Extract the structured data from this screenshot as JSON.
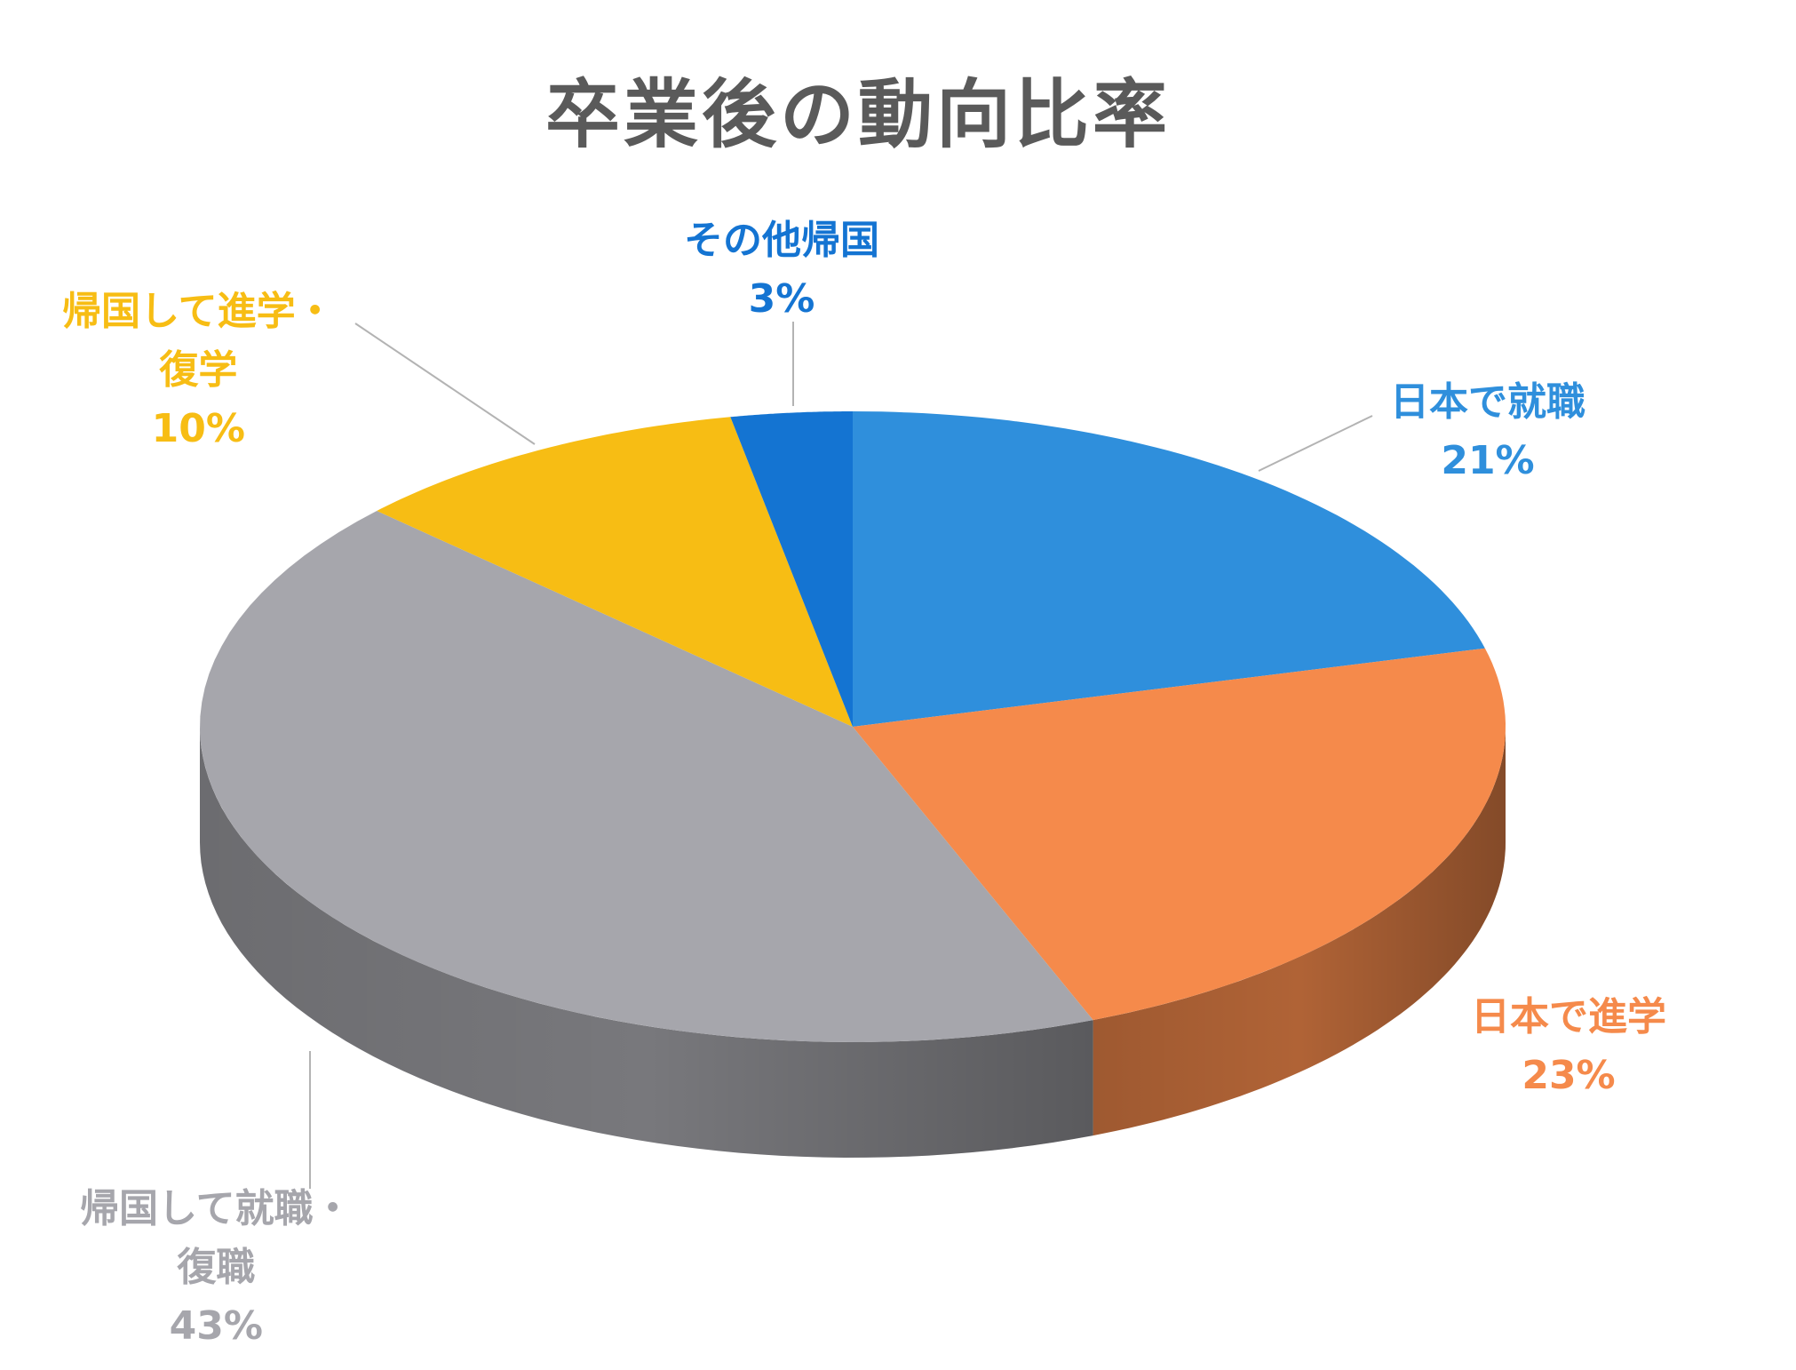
{
  "chart_data": {
    "type": "pie",
    "title": "卒業後の動向比率",
    "slices": [
      {
        "label_lines": [
          "日本で就職"
        ],
        "value_label": "21%",
        "value": 21,
        "color": "#2f8fdc"
      },
      {
        "label_lines": [
          "日本で進学"
        ],
        "value_label": "23%",
        "value": 23,
        "color": "#f58a4b"
      },
      {
        "label_lines": [
          "帰国して就職・",
          "復職"
        ],
        "value_label": "43%",
        "value": 43,
        "color": "#a6a6ac"
      },
      {
        "label_lines": [
          "帰国して進学・",
          "復学"
        ],
        "value_label": "10%",
        "value": 10,
        "color": "#f7bd14"
      },
      {
        "label_lines": [
          "その他帰国"
        ],
        "value_label": "3%",
        "value": 3,
        "color": "#1474d2"
      }
    ]
  }
}
